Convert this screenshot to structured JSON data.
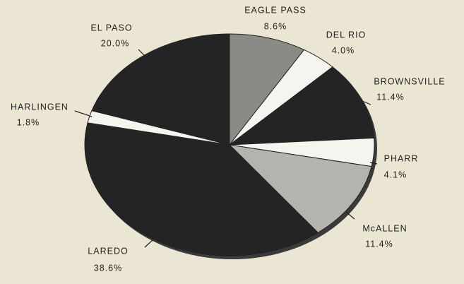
{
  "chart_data": {
    "type": "pie",
    "categories": [
      "EAGLE PASS",
      "DEL RIO",
      "BROWNSVILLE",
      "PHARR",
      "McALLEN",
      "LAREDO",
      "HARLINGEN",
      "EL PASO"
    ],
    "values": [
      8.6,
      4.0,
      11.4,
      4.1,
      11.4,
      38.6,
      1.8,
      20.0
    ],
    "value_labels": [
      "8.6%",
      "4.0%",
      "11.4%",
      "4.1%",
      "11.4%",
      "38.6%",
      "1.8%",
      "20.0%"
    ],
    "colors": [
      "#8a8a86",
      "#f6f4ee",
      "#242424",
      "#f6f4ee",
      "#b4b3ad",
      "#242424",
      "#f6f4ee",
      "#242424"
    ]
  }
}
